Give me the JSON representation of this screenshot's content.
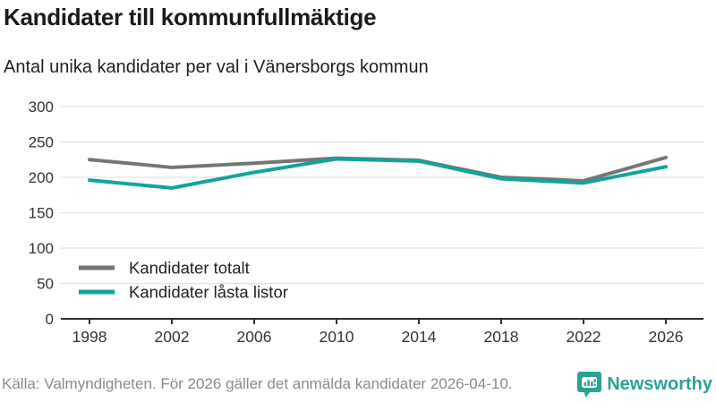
{
  "header": {
    "title": "Kandidater till kommunfullmäktige",
    "subtitle": "Antal unika kandidater per val i Vänersborgs kommun"
  },
  "chart_data": {
    "type": "line",
    "x": [
      1998,
      2002,
      2006,
      2010,
      2014,
      2018,
      2022,
      2026
    ],
    "series": [
      {
        "name": "Kandidater totalt",
        "color": "#757575",
        "values": [
          225,
          214,
          220,
          227,
          224,
          200,
          195,
          228
        ]
      },
      {
        "name": "Kandidater låsta listor",
        "color": "#12a39d",
        "values": [
          196,
          185,
          207,
          226,
          223,
          198,
          192,
          215
        ]
      }
    ],
    "title": "Kandidater till kommunfullmäktige",
    "subtitle": "Antal unika kandidater per val i Vänersborgs kommun",
    "xlabel": "",
    "ylabel": "",
    "ylim": [
      0,
      300
    ],
    "yticks": [
      0,
      50,
      100,
      150,
      200,
      250,
      300
    ],
    "xticks": [
      1998,
      2002,
      2006,
      2010,
      2014,
      2018,
      2022,
      2026
    ],
    "grid": true,
    "legend_position": "inside-bottom-left"
  },
  "footer": {
    "source": "Källa: Valmyndigheten. För 2026 gäller det anmälda kandidater 2026-04-10.",
    "brand": "Newsworthy"
  },
  "colors": {
    "accent_teal": "#12a39d",
    "series_gray": "#757575",
    "brand_teal": "#2aa396",
    "grid_line": "#e2e2e2",
    "axis_line": "#2f2f2f",
    "tick_label": "#333333",
    "legend_text": "#222222"
  }
}
